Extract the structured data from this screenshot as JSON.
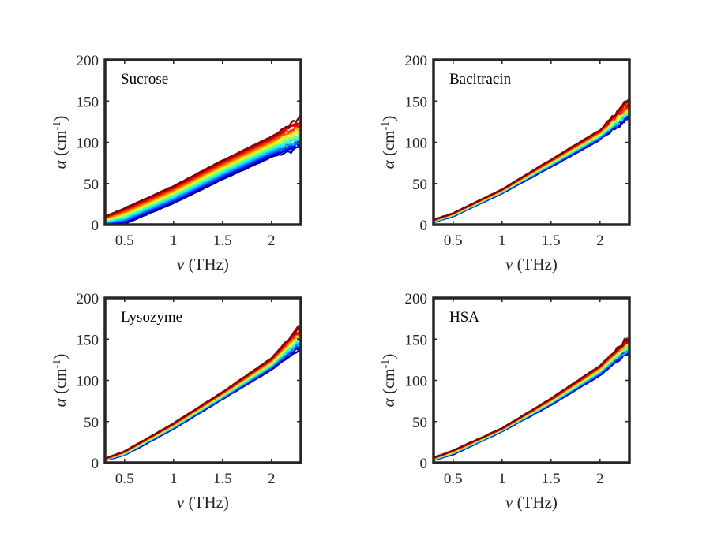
{
  "chart_data": [
    {
      "type": "line",
      "title": "Sucrose",
      "xlabel_symbol": "ν",
      "xlabel_unit": "(THz)",
      "ylabel_symbol": "α",
      "ylabel_unit": "(cm",
      "ylabel_exp": "-1",
      "ylabel_close": ")",
      "xlim": [
        0.3,
        2.3
      ],
      "ylim": [
        0,
        200
      ],
      "xticks": [
        0.5,
        1,
        1.5,
        2
      ],
      "xtick_labels": [
        "0.5",
        "1",
        "1.5",
        "2"
      ],
      "yticks": [
        0,
        50,
        100,
        150,
        200
      ],
      "ytick_labels": [
        "0",
        "50",
        "100",
        "150",
        "200"
      ],
      "colormap": "jet",
      "series_count": 18,
      "series_envelope": [
        {
          "name": "lowest (blue)",
          "x": [
            0.3,
            0.5,
            1.0,
            1.5,
            2.0,
            2.3
          ],
          "y": [
            0,
            1,
            26,
            55,
            82,
            94
          ]
        },
        {
          "name": "highest (red)",
          "x": [
            0.3,
            0.5,
            1.0,
            1.5,
            2.0,
            2.3
          ],
          "y": [
            10,
            20,
            47,
            78,
            107,
            129
          ]
        }
      ],
      "noise_start_x": 2.0
    },
    {
      "type": "line",
      "title": "Bacitracin",
      "xlabel_symbol": "ν",
      "xlabel_unit": "(THz)",
      "ylabel_symbol": "α",
      "ylabel_unit": "(cm",
      "ylabel_exp": "-1",
      "ylabel_close": ")",
      "xlim": [
        0.3,
        2.3
      ],
      "ylim": [
        0,
        200
      ],
      "xticks": [
        0.5,
        1,
        1.5,
        2
      ],
      "xtick_labels": [
        "0.5",
        "1",
        "1.5",
        "2"
      ],
      "yticks": [
        0,
        50,
        100,
        150,
        200
      ],
      "ytick_labels": [
        "0",
        "50",
        "100",
        "150",
        "200"
      ],
      "colormap": "jet",
      "series_count": 18,
      "series_envelope": [
        {
          "name": "lowest (blue)",
          "x": [
            0.3,
            0.5,
            1.0,
            1.5,
            2.0,
            2.3
          ],
          "y": [
            3,
            10,
            38,
            70,
            103,
            130
          ]
        },
        {
          "name": "highest (red)",
          "x": [
            0.3,
            0.5,
            1.0,
            1.5,
            2.0,
            2.3
          ],
          "y": [
            6,
            14,
            43,
            79,
            115,
            152
          ]
        }
      ],
      "noise_start_x": 1.95
    },
    {
      "type": "line",
      "title": "Lysozyme",
      "xlabel_symbol": "ν",
      "xlabel_unit": "(THz)",
      "ylabel_symbol": "α",
      "ylabel_unit": "(cm",
      "ylabel_exp": "-1",
      "ylabel_close": ")",
      "xlim": [
        0.3,
        2.3
      ],
      "ylim": [
        0,
        200
      ],
      "xticks": [
        0.5,
        1,
        1.5,
        2
      ],
      "xtick_labels": [
        "0.5",
        "1",
        "1.5",
        "2"
      ],
      "yticks": [
        0,
        50,
        100,
        150,
        200
      ],
      "ytick_labels": [
        "0",
        "50",
        "100",
        "150",
        "200"
      ],
      "colormap": "jet",
      "series_count": 18,
      "series_envelope": [
        {
          "name": "lowest (blue)",
          "x": [
            0.3,
            0.5,
            1.0,
            1.5,
            2.0,
            2.3
          ],
          "y": [
            3,
            9,
            41,
            77,
            113,
            140
          ]
        },
        {
          "name": "highest (red)",
          "x": [
            0.3,
            0.5,
            1.0,
            1.5,
            2.0,
            2.3
          ],
          "y": [
            5,
            14,
            48,
            86,
            127,
            167
          ]
        }
      ],
      "noise_start_x": 2.1
    },
    {
      "type": "line",
      "title": "HSA",
      "xlabel_symbol": "ν",
      "xlabel_unit": "(THz)",
      "ylabel_symbol": "α",
      "ylabel_unit": "(cm",
      "ylabel_exp": "-1",
      "ylabel_close": ")",
      "xlim": [
        0.3,
        2.3
      ],
      "ylim": [
        0,
        200
      ],
      "xticks": [
        0.5,
        1,
        1.5,
        2
      ],
      "xtick_labels": [
        "0.5",
        "1",
        "1.5",
        "2"
      ],
      "yticks": [
        0,
        50,
        100,
        150,
        200
      ],
      "ytick_labels": [
        "0",
        "50",
        "100",
        "150",
        "200"
      ],
      "colormap": "jet",
      "series_count": 18,
      "series_envelope": [
        {
          "name": "lowest (blue)",
          "x": [
            0.3,
            0.5,
            1.0,
            1.5,
            2.0,
            2.3
          ],
          "y": [
            3,
            10,
            38,
            70,
            106,
            135
          ]
        },
        {
          "name": "highest (red/orange)",
          "x": [
            0.3,
            0.5,
            1.0,
            1.5,
            2.0,
            2.3
          ],
          "y": [
            6,
            15,
            42,
            78,
            118,
            153
          ]
        }
      ],
      "noise_start_x": 2.1
    }
  ]
}
